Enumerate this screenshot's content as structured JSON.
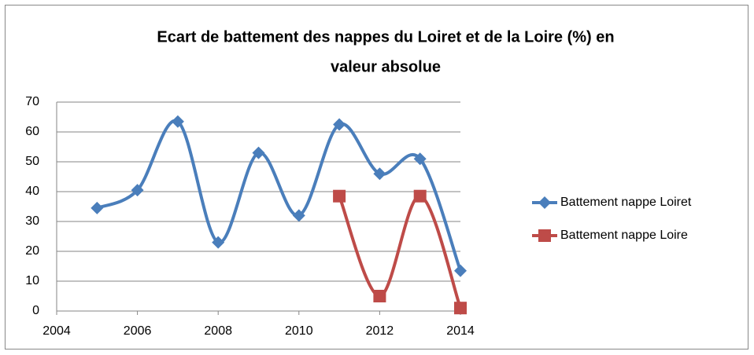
{
  "chart_data": {
    "type": "line",
    "title": "Ecart de battement des nappes du Loiret et de la Loire (%) en valeur absolue",
    "x": [
      2005,
      2006,
      2007,
      2008,
      2009,
      2010,
      2011,
      2012,
      2013,
      2014
    ],
    "series": [
      {
        "name": "Battement nappe Loiret",
        "color": "#4a7ebb",
        "marker": "diamond",
        "values": [
          34.5,
          40.5,
          63.5,
          23,
          53,
          32,
          62.5,
          46,
          51,
          13.5
        ]
      },
      {
        "name": "Battement nappe Loire",
        "color": "#be4b48",
        "marker": "square",
        "values": [
          null,
          null,
          null,
          null,
          null,
          null,
          38.5,
          5,
          38.5,
          1
        ]
      }
    ],
    "xlim": [
      2004,
      2014
    ],
    "xticks": [
      2004,
      2006,
      2008,
      2010,
      2012,
      2014
    ],
    "ylim": [
      0,
      70
    ],
    "yticks": [
      0,
      10,
      20,
      30,
      40,
      50,
      60,
      70
    ],
    "grid": true,
    "legend": "right",
    "smooth": true
  }
}
